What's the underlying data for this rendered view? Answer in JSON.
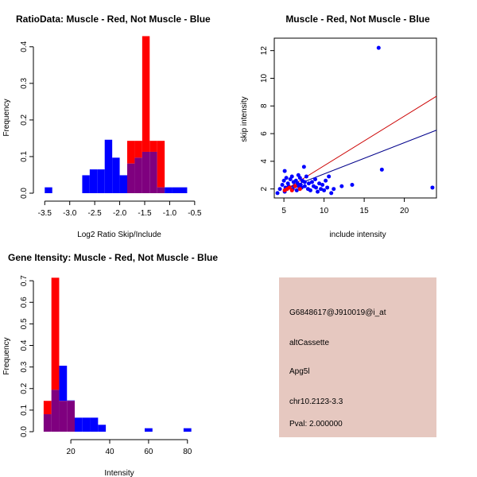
{
  "colors": {
    "muscle": "#ff0000",
    "not_muscle": "#0000ff",
    "overlap": "#7f007f",
    "info_bg": "#e6c8c0",
    "pval": "#cc0000"
  },
  "chart_data": [
    {
      "id": "ratio-hist",
      "type": "bar",
      "title": "RatioData: Muscle - Red, Not Muscle - Blue",
      "xlabel": "Log2 Ratio Skip/Include",
      "ylabel": "Frequency",
      "xlim": [
        -3.6,
        -0.45
      ],
      "ylim": [
        0,
        0.43
      ],
      "xticks": [
        -3.5,
        -3.0,
        -2.5,
        -2.0,
        -1.5,
        -1.0,
        -0.5
      ],
      "xtick_labels": [
        "-3.5",
        "-3.0",
        "-2.5",
        "-2.0",
        "-1.5",
        "-1.0",
        "-0.5"
      ],
      "yticks": [
        0.0,
        0.1,
        0.2,
        0.3,
        0.4
      ],
      "ytick_labels": [
        "0.0",
        "0.1",
        "0.2",
        "0.3",
        "0.4"
      ],
      "bin_edges": [
        -3.5,
        -3.35,
        -3.2,
        -3.05,
        -2.9,
        -2.75,
        -2.6,
        -2.45,
        -2.3,
        -2.15,
        -2.0,
        -1.85,
        -1.7,
        -1.55,
        -1.4,
        -1.25,
        -1.1,
        -0.95,
        -0.8,
        -0.65,
        -0.5
      ],
      "series": [
        {
          "name": "Muscle",
          "color": "#ff0000",
          "values": [
            0,
            0,
            0,
            0,
            0,
            0,
            0,
            0,
            0,
            0,
            0,
            0.143,
            0.143,
            0.429,
            0.143,
            0.143,
            0,
            0,
            0,
            0
          ]
        },
        {
          "name": "Not Muscle",
          "color": "#0000ff",
          "values": [
            0.016,
            0,
            0,
            0,
            0,
            0.049,
            0.065,
            0.065,
            0.146,
            0.097,
            0.049,
            0.081,
            0.097,
            0.113,
            0.113,
            0.016,
            0.016,
            0.016,
            0.016,
            0
          ]
        }
      ]
    },
    {
      "id": "scatter",
      "type": "scatter",
      "title": "Muscle - Red, Not Muscle - Blue",
      "xlabel": "include intensity",
      "ylabel": "skip intensity",
      "xlim": [
        3.8,
        24
      ],
      "ylim": [
        1.35,
        12.9
      ],
      "xticks": [
        5,
        10,
        15,
        20
      ],
      "xtick_labels": [
        "5",
        "10",
        "15",
        "20"
      ],
      "yticks": [
        2,
        4,
        6,
        8,
        10,
        12
      ],
      "ytick_labels": [
        "2",
        "4",
        "6",
        "8",
        "10",
        "12"
      ],
      "series": [
        {
          "name": "Not Muscle",
          "color": "#0000ff",
          "x": [
            4.2,
            4.5,
            4.8,
            5.0,
            5.1,
            5.2,
            5.3,
            5.5,
            5.6,
            5.8,
            6.0,
            6.1,
            6.2,
            6.3,
            6.5,
            6.6,
            6.7,
            6.8,
            7.0,
            7.1,
            7.2,
            7.3,
            7.5,
            7.6,
            7.8,
            8.0,
            8.1,
            8.3,
            8.5,
            8.7,
            8.9,
            9.0,
            9.2,
            9.4,
            9.6,
            9.8,
            10.0,
            10.2,
            10.4,
            10.6,
            10.9,
            11.2,
            12.2,
            13.5,
            16.8,
            17.2,
            23.5,
            5.1,
            6.8,
            7.6
          ],
          "y": [
            1.7,
            2.0,
            2.3,
            2.6,
            3.3,
            2.1,
            2.8,
            2.4,
            2.2,
            2.7,
            2.9,
            2.0,
            2.5,
            2.2,
            2.6,
            1.9,
            2.4,
            3.0,
            2.8,
            2.3,
            2.1,
            2.6,
            3.6,
            2.2,
            2.9,
            2.0,
            2.4,
            1.9,
            2.5,
            2.2,
            2.7,
            2.1,
            1.8,
            2.4,
            2.0,
            2.3,
            1.9,
            2.6,
            2.1,
            2.9,
            1.7,
            2.0,
            2.2,
            2.3,
            12.2,
            3.4,
            2.1,
            1.8,
            2.2,
            2.5
          ]
        },
        {
          "name": "Muscle",
          "color": "#ff0000",
          "x": [
            5.1,
            5.4,
            5.7,
            6.0,
            6.4,
            7.0
          ],
          "y": [
            1.9,
            2.0,
            2.1,
            1.9,
            2.2,
            2.0
          ]
        }
      ],
      "fit_lines": [
        {
          "name": "Muscle fit",
          "color": "#cc0000",
          "x": [
            4.9,
            24
          ],
          "y": [
            1.85,
            8.7
          ]
        },
        {
          "name": "Not Muscle fit",
          "color": "#00008b",
          "x": [
            5.2,
            24
          ],
          "y": [
            2.0,
            6.25
          ]
        }
      ]
    },
    {
      "id": "intensity-hist",
      "type": "bar",
      "title": "Gene Itensity: Muscle - Red, Not Muscle - Blue",
      "xlabel": "Intensity",
      "ylabel": "Frequency",
      "xlim": [
        4,
        85
      ],
      "ylim": [
        0,
        0.73
      ],
      "xticks": [
        20,
        40,
        60,
        80
      ],
      "xtick_labels": [
        "20",
        "40",
        "60",
        "80"
      ],
      "yticks": [
        0.0,
        0.1,
        0.2,
        0.3,
        0.4,
        0.5,
        0.6,
        0.7
      ],
      "ytick_labels": [
        "0.0",
        "0.1",
        "0.2",
        "0.3",
        "0.4",
        "0.5",
        "0.6",
        "0.7"
      ],
      "bin_edges": [
        6,
        10,
        14,
        18,
        22,
        26,
        30,
        34,
        38,
        42,
        46,
        50,
        54,
        58,
        62,
        66,
        70,
        74,
        78,
        82
      ],
      "series": [
        {
          "name": "Muscle",
          "color": "#ff0000",
          "values": [
            0.143,
            0.714,
            0.143,
            0.143,
            0,
            0,
            0,
            0,
            0,
            0,
            0,
            0,
            0,
            0,
            0,
            0,
            0,
            0,
            0
          ]
        },
        {
          "name": "Not Muscle",
          "color": "#0000ff",
          "values": [
            0.081,
            0.194,
            0.306,
            0.145,
            0.065,
            0.065,
            0.065,
            0.032,
            0,
            0,
            0,
            0,
            0,
            0.016,
            0,
            0,
            0,
            0,
            0.016
          ]
        }
      ]
    }
  ],
  "info_panel": {
    "probe_id": "G6848617@J910019@i_at",
    "event_type": "altCassette",
    "gene": "Apg5l",
    "location": "chr10.2123-3.3",
    "pval": "Pval: 2.000000"
  }
}
